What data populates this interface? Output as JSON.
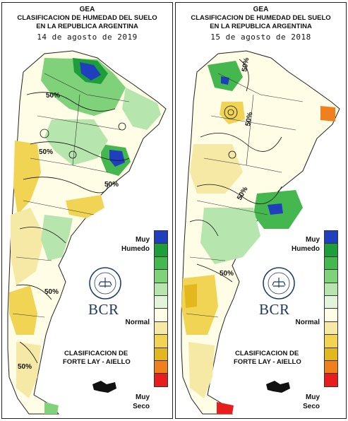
{
  "panels": [
    {
      "org": "GEA",
      "title_line1": "CLASIFICACION DE HUMEDAD DEL SUELO",
      "title_line2": "EN LA REPUBLICA ARGENTINA",
      "date": "14 de agosto de 2019",
      "contour_labels": [
        "50%",
        "50%",
        "50%",
        "50%",
        "50%"
      ],
      "logo_text": "BCR",
      "legend": {
        "top_label_1": "Muy",
        "top_label_2": "Humedo",
        "middle_label": "Normal",
        "bottom_label_1": "Muy",
        "bottom_label_2": "Seco"
      },
      "classification_line1": "CLASIFICACION DE",
      "classification_line2": "FORTE LAY - AIELLO"
    },
    {
      "org": "GEA",
      "title_line1": "CLASIFICACION DE HUMEDAD DEL SUELO",
      "title_line2": "EN LA REPUBLICA ARGENTINA",
      "date": "15 de agosto de 2018",
      "contour_labels": [
        "50%",
        "50%",
        "50%",
        "50%"
      ],
      "logo_text": "BCR",
      "legend": {
        "top_label_1": "Muy",
        "top_label_2": "Humedo",
        "middle_label": "Normal",
        "bottom_label_1": "Muy",
        "bottom_label_2": "Seco"
      },
      "classification_line1": "CLASIFICACION DE",
      "classification_line2": "FORTE LAY - AIELLO"
    }
  ],
  "legend_colors": [
    "#1f3fbf",
    "#1e9e3a",
    "#44b84e",
    "#7fd27a",
    "#b6e6ad",
    "#e2f5da",
    "#fffde6",
    "#f6e9a6",
    "#f1d454",
    "#e3b81e",
    "#f07f1e",
    "#e81e1e"
  ]
}
